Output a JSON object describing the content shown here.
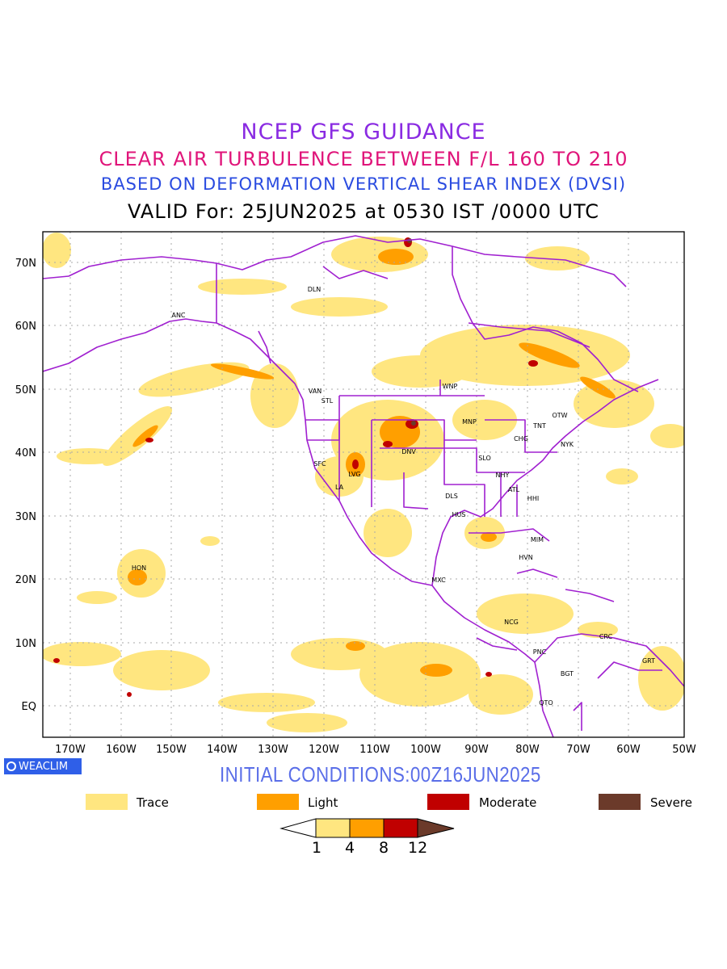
{
  "titles": {
    "line1": "NCEP GFS GUIDANCE",
    "line2": "CLEAR AIR TURBULENCE BETWEEN F/L 160 TO 210",
    "line3": "BASED ON DEFORMATION VERTICAL SHEAR INDEX (DVSI)",
    "line4": "VALID For: 25JUN2025 at 0530 IST /0000 UTC"
  },
  "colors": {
    "title1": "#8a2be2",
    "title2": "#e0157a",
    "title3": "#2a4be0",
    "trace": "#ffe680",
    "light": "#ff9f00",
    "moderate": "#c00000",
    "severe": "#6b3a2a",
    "boundary": "#a020d0",
    "grid": "#a8a8a8"
  },
  "lat_labels": [
    "70N",
    "60N",
    "50N",
    "40N",
    "30N",
    "20N",
    "10N",
    "EQ"
  ],
  "lon_labels": [
    "170W",
    "160W",
    "150W",
    "140W",
    "130W",
    "120W",
    "110W",
    "100W",
    "90W",
    "80W",
    "70W",
    "60W",
    "50W"
  ],
  "stations": [
    "DLN",
    "ANC",
    "VAN",
    "STL",
    "WNP",
    "MNP",
    "TNT",
    "OTW",
    "NYK",
    "CHG",
    "DNV",
    "SFC",
    "LVG",
    "LA",
    "SLO",
    "NHY",
    "ATL",
    "HHI",
    "DLS",
    "HUS",
    "MIM",
    "HVN",
    "HON",
    "MXC",
    "NCG",
    "CRC",
    "GRT",
    "PNC",
    "BGT",
    "QTO"
  ],
  "badge": {
    "label": "WEACLIM",
    "icon": "circle-logo-icon"
  },
  "initial_conditions": "INITIAL CONDITIONS:00Z16JUN2025",
  "legend": [
    {
      "label": "Trace",
      "color": "#ffe680"
    },
    {
      "label": "Light",
      "color": "#ff9f00"
    },
    {
      "label": "Moderate",
      "color": "#c00000"
    },
    {
      "label": "Severe",
      "color": "#6b3a2a"
    }
  ],
  "colorbar": {
    "ticks": [
      "1",
      "4",
      "8",
      "12"
    ]
  }
}
